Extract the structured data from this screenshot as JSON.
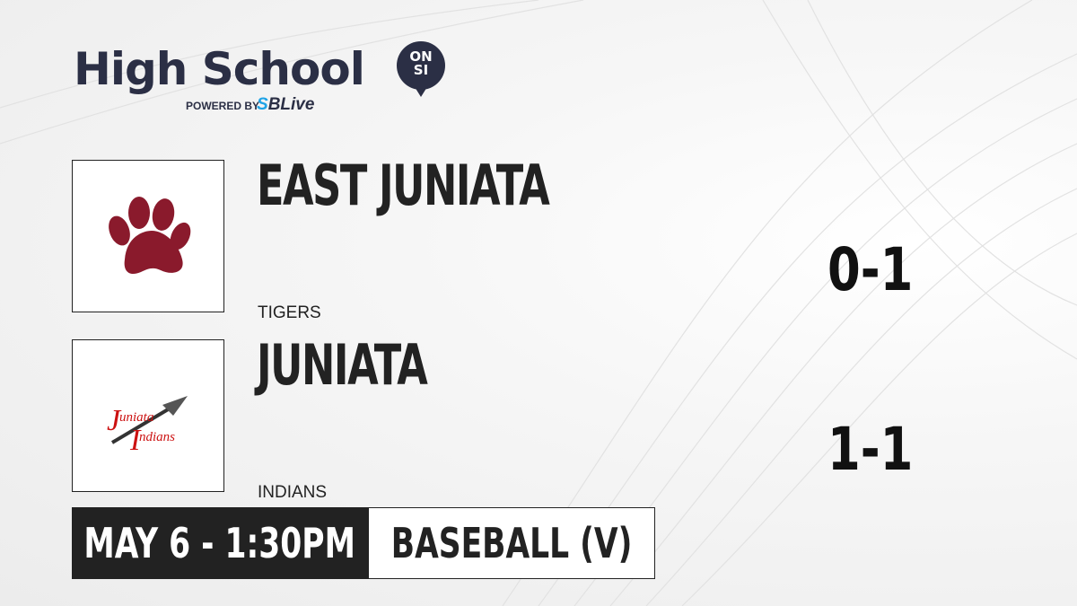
{
  "brand": {
    "title": "High School",
    "badge_top": "ON",
    "badge_bottom": "SI",
    "powered_by": "POWERED BY",
    "partner_s": "S",
    "partner_rest": "BLive"
  },
  "home": {
    "name": "EAST JUNIATA",
    "mascot": "TIGERS",
    "record": "0-1",
    "logo": "paw-print",
    "color": "#8a1a2c"
  },
  "away": {
    "name": "JUNIATA",
    "mascot": "INDIANS",
    "record": "1-1",
    "logo": "juniata-indians-arrow",
    "logo_text_1": "uniata",
    "logo_text_2": "ndians",
    "color": "#cc1111"
  },
  "game": {
    "datetime": "MAY 6 - 1:30PM",
    "sport": "BASEBALL (V)"
  }
}
